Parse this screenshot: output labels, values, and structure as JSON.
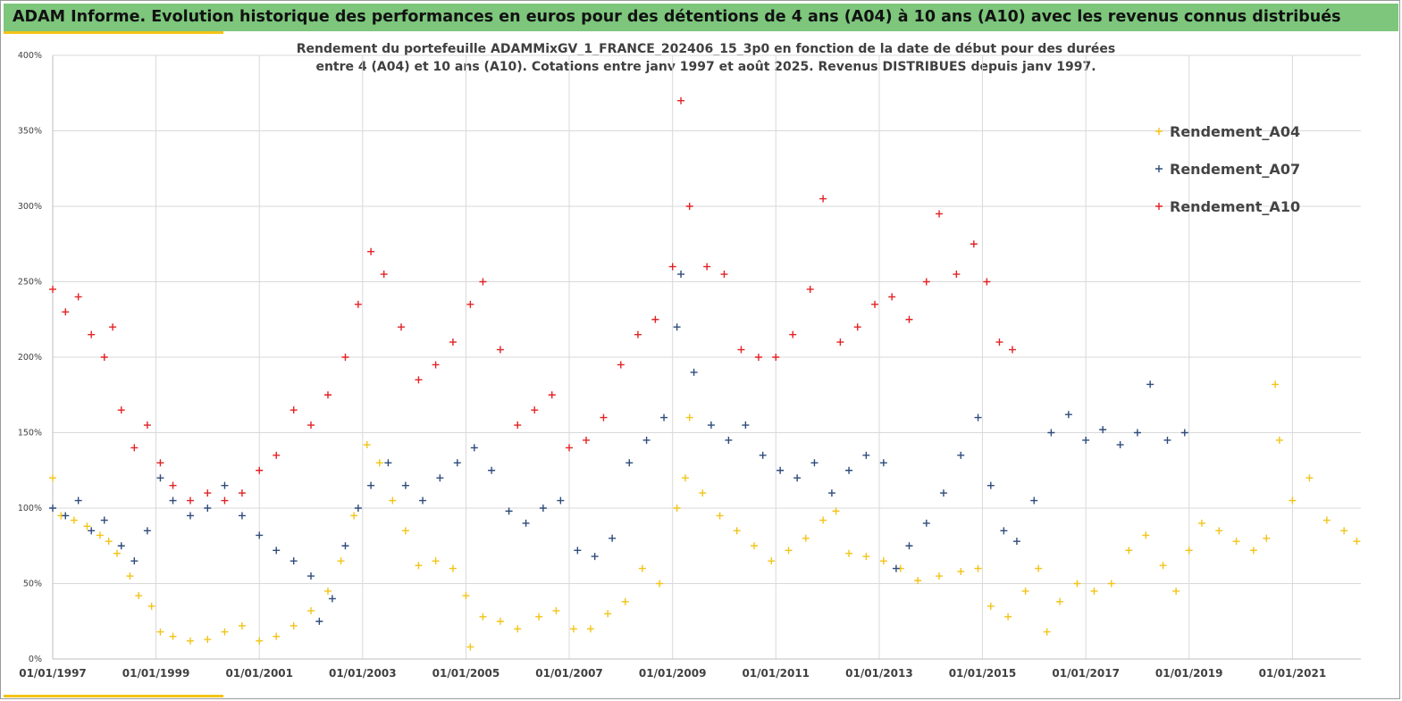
{
  "header": {
    "title": "ADAM Informe. Evolution historique des performances en euros pour des détentions de 4 ans (A04) à 10 ans (A10) avec les revenus connus distribués"
  },
  "colors": {
    "banner": "#7dc67c",
    "stripe": "#f3c318",
    "A04": "#f2c417",
    "A07": "#2f4b7c",
    "A10": "#e32224",
    "grid": "#d9d9d9"
  },
  "chart_data": {
    "type": "scatter",
    "title_line1": "Rendement du portefeuille ADAMMixGV_1_FRANCE_202406_15_3p0  en fonction de la date de début pour des durées",
    "title_line2": "entre 4 (A04) et 10 ans (A10). Cotations entre janv 1997 et août 2025. Revenus DISTRIBUES depuis janv 1997.",
    "xlabel": "",
    "ylabel": "",
    "x_range": [
      "1997-01-01",
      "2022-04-30"
    ],
    "ylim": [
      0,
      4
    ],
    "y_ticks": [
      "0%",
      "50%",
      "100%",
      "150%",
      "200%",
      "250%",
      "300%",
      "350%",
      "400%"
    ],
    "x_ticks": [
      "01/01/1997",
      "01/01/1999",
      "01/01/2001",
      "01/01/2003",
      "01/01/2005",
      "01/01/2007",
      "01/01/2009",
      "01/01/2011",
      "01/01/2013",
      "01/01/2015",
      "01/01/2017",
      "01/01/2019",
      "01/01/2021"
    ],
    "grid": true,
    "legend_position": "top-right",
    "marker": "+",
    "series": [
      {
        "name": "Rendement_A04",
        "color": "#f2c417",
        "points": [
          [
            "1997-01-01",
            1.2
          ],
          [
            "1997-03-01",
            0.95
          ],
          [
            "1997-06-01",
            0.92
          ],
          [
            "1997-09-01",
            0.88
          ],
          [
            "1997-12-01",
            0.82
          ],
          [
            "1998-02-01",
            0.78
          ],
          [
            "1998-04-01",
            0.7
          ],
          [
            "1998-07-01",
            0.55
          ],
          [
            "1998-09-01",
            0.42
          ],
          [
            "1998-12-01",
            0.35
          ],
          [
            "1999-02-01",
            0.18
          ],
          [
            "1999-05-01",
            0.15
          ],
          [
            "1999-09-01",
            0.12
          ],
          [
            "2000-01-01",
            0.13
          ],
          [
            "2000-05-01",
            0.18
          ],
          [
            "2000-09-01",
            0.22
          ],
          [
            "2001-01-01",
            0.12
          ],
          [
            "2001-05-01",
            0.15
          ],
          [
            "2001-09-01",
            0.22
          ],
          [
            "2002-01-01",
            0.32
          ],
          [
            "2002-05-01",
            0.45
          ],
          [
            "2002-08-01",
            0.65
          ],
          [
            "2002-11-01",
            0.95
          ],
          [
            "2003-02-01",
            1.42
          ],
          [
            "2003-05-01",
            1.3
          ],
          [
            "2003-08-01",
            1.05
          ],
          [
            "2003-11-01",
            0.85
          ],
          [
            "2004-02-01",
            0.62
          ],
          [
            "2004-06-01",
            0.65
          ],
          [
            "2004-10-01",
            0.6
          ],
          [
            "2005-01-01",
            0.42
          ],
          [
            "2005-02-01",
            0.08
          ],
          [
            "2005-05-01",
            0.28
          ],
          [
            "2005-09-01",
            0.25
          ],
          [
            "2006-01-01",
            0.2
          ],
          [
            "2006-06-01",
            0.28
          ],
          [
            "2006-10-01",
            0.32
          ],
          [
            "2007-02-01",
            0.2
          ],
          [
            "2007-06-01",
            0.2
          ],
          [
            "2007-10-01",
            0.3
          ],
          [
            "2008-02-01",
            0.38
          ],
          [
            "2008-06-01",
            0.6
          ],
          [
            "2008-10-01",
            0.5
          ],
          [
            "2009-02-01",
            1.0
          ],
          [
            "2009-04-01",
            1.2
          ],
          [
            "2009-05-01",
            1.6
          ],
          [
            "2009-08-01",
            1.1
          ],
          [
            "2009-12-01",
            0.95
          ],
          [
            "2010-04-01",
            0.85
          ],
          [
            "2010-08-01",
            0.75
          ],
          [
            "2010-12-01",
            0.65
          ],
          [
            "2011-04-01",
            0.72
          ],
          [
            "2011-08-01",
            0.8
          ],
          [
            "2011-12-01",
            0.92
          ],
          [
            "2012-03-01",
            0.98
          ],
          [
            "2012-06-01",
            0.7
          ],
          [
            "2012-10-01",
            0.68
          ],
          [
            "2013-02-01",
            0.65
          ],
          [
            "2013-06-01",
            0.6
          ],
          [
            "2013-10-01",
            0.52
          ],
          [
            "2014-03-01",
            0.55
          ],
          [
            "2014-08-01",
            0.58
          ],
          [
            "2014-12-01",
            0.6
          ],
          [
            "2015-03-01",
            0.35
          ],
          [
            "2015-07-01",
            0.28
          ],
          [
            "2015-11-01",
            0.45
          ],
          [
            "2016-02-01",
            0.6
          ],
          [
            "2016-04-01",
            0.18
          ],
          [
            "2016-07-01",
            0.38
          ],
          [
            "2016-11-01",
            0.5
          ],
          [
            "2017-03-01",
            0.45
          ],
          [
            "2017-07-01",
            0.5
          ],
          [
            "2017-11-01",
            0.72
          ],
          [
            "2018-03-01",
            0.82
          ],
          [
            "2018-07-01",
            0.62
          ],
          [
            "2018-10-01",
            0.45
          ],
          [
            "2019-01-01",
            0.72
          ],
          [
            "2019-04-01",
            0.9
          ],
          [
            "2019-08-01",
            0.85
          ],
          [
            "2019-12-01",
            0.78
          ],
          [
            "2020-04-01",
            0.72
          ],
          [
            "2020-07-01",
            0.8
          ],
          [
            "2020-09-01",
            1.82
          ],
          [
            "2020-10-01",
            1.45
          ],
          [
            "2021-01-01",
            1.05
          ],
          [
            "2021-05-01",
            1.2
          ],
          [
            "2021-09-01",
            0.92
          ],
          [
            "2022-01-01",
            0.85
          ],
          [
            "2022-04-01",
            0.78
          ]
        ]
      },
      {
        "name": "Rendement_A07",
        "color": "#2f4b7c",
        "points": [
          [
            "1997-01-01",
            1.0
          ],
          [
            "1997-04-01",
            0.95
          ],
          [
            "1997-07-01",
            1.05
          ],
          [
            "1997-10-01",
            0.85
          ],
          [
            "1998-01-01",
            0.92
          ],
          [
            "1998-05-01",
            0.75
          ],
          [
            "1998-08-01",
            0.65
          ],
          [
            "1998-11-01",
            0.85
          ],
          [
            "1999-02-01",
            1.2
          ],
          [
            "1999-05-01",
            1.05
          ],
          [
            "1999-09-01",
            0.95
          ],
          [
            "2000-01-01",
            1.0
          ],
          [
            "2000-05-01",
            1.15
          ],
          [
            "2000-09-01",
            0.95
          ],
          [
            "2001-01-01",
            0.82
          ],
          [
            "2001-05-01",
            0.72
          ],
          [
            "2001-09-01",
            0.65
          ],
          [
            "2002-01-01",
            0.55
          ],
          [
            "2002-03-01",
            0.25
          ],
          [
            "2002-06-01",
            0.4
          ],
          [
            "2002-09-01",
            0.75
          ],
          [
            "2002-12-01",
            1.0
          ],
          [
            "2003-03-01",
            1.15
          ],
          [
            "2003-07-01",
            1.3
          ],
          [
            "2003-11-01",
            1.15
          ],
          [
            "2004-03-01",
            1.05
          ],
          [
            "2004-07-01",
            1.2
          ],
          [
            "2004-11-01",
            1.3
          ],
          [
            "2005-03-01",
            1.4
          ],
          [
            "2005-07-01",
            1.25
          ],
          [
            "2005-11-01",
            0.98
          ],
          [
            "2006-03-01",
            0.9
          ],
          [
            "2006-07-01",
            1.0
          ],
          [
            "2006-11-01",
            1.05
          ],
          [
            "2007-03-01",
            0.72
          ],
          [
            "2007-07-01",
            0.68
          ],
          [
            "2007-11-01",
            0.8
          ],
          [
            "2008-03-01",
            1.3
          ],
          [
            "2008-07-01",
            1.45
          ],
          [
            "2008-11-01",
            1.6
          ],
          [
            "2009-02-01",
            2.2
          ],
          [
            "2009-03-01",
            2.55
          ],
          [
            "2009-06-01",
            1.9
          ],
          [
            "2009-10-01",
            1.55
          ],
          [
            "2010-02-01",
            1.45
          ],
          [
            "2010-06-01",
            1.55
          ],
          [
            "2010-10-01",
            1.35
          ],
          [
            "2011-02-01",
            1.25
          ],
          [
            "2011-06-01",
            1.2
          ],
          [
            "2011-10-01",
            1.3
          ],
          [
            "2012-02-01",
            1.1
          ],
          [
            "2012-06-01",
            1.25
          ],
          [
            "2012-10-01",
            1.35
          ],
          [
            "2013-02-01",
            1.3
          ],
          [
            "2013-05-01",
            0.6
          ],
          [
            "2013-08-01",
            0.75
          ],
          [
            "2013-12-01",
            0.9
          ],
          [
            "2014-04-01",
            1.1
          ],
          [
            "2014-08-01",
            1.35
          ],
          [
            "2014-12-01",
            1.6
          ],
          [
            "2015-03-01",
            1.15
          ],
          [
            "2015-06-01",
            0.85
          ],
          [
            "2015-09-01",
            0.78
          ],
          [
            "2016-01-01",
            1.05
          ],
          [
            "2016-05-01",
            1.5
          ],
          [
            "2016-09-01",
            1.62
          ],
          [
            "2017-01-01",
            1.45
          ],
          [
            "2017-05-01",
            1.52
          ],
          [
            "2017-09-01",
            1.42
          ],
          [
            "2018-01-01",
            1.5
          ],
          [
            "2018-04-01",
            1.82
          ],
          [
            "2018-08-01",
            1.45
          ],
          [
            "2018-12-01",
            1.5
          ]
        ]
      },
      {
        "name": "Rendement_A10",
        "color": "#e32224",
        "points": [
          [
            "1997-01-01",
            2.45
          ],
          [
            "1997-04-01",
            2.3
          ],
          [
            "1997-07-01",
            2.4
          ],
          [
            "1997-10-01",
            2.15
          ],
          [
            "1998-01-01",
            2.0
          ],
          [
            "1998-03-01",
            2.2
          ],
          [
            "1998-05-01",
            1.65
          ],
          [
            "1998-08-01",
            1.4
          ],
          [
            "1998-11-01",
            1.55
          ],
          [
            "1999-02-01",
            1.3
          ],
          [
            "1999-05-01",
            1.15
          ],
          [
            "1999-09-01",
            1.05
          ],
          [
            "2000-01-01",
            1.1
          ],
          [
            "2000-05-01",
            1.05
          ],
          [
            "2000-09-01",
            1.1
          ],
          [
            "2001-01-01",
            1.25
          ],
          [
            "2001-05-01",
            1.35
          ],
          [
            "2001-09-01",
            1.65
          ],
          [
            "2002-01-01",
            1.55
          ],
          [
            "2002-05-01",
            1.75
          ],
          [
            "2002-09-01",
            2.0
          ],
          [
            "2002-12-01",
            2.35
          ],
          [
            "2003-03-01",
            2.7
          ],
          [
            "2003-06-01",
            2.55
          ],
          [
            "2003-10-01",
            2.2
          ],
          [
            "2004-02-01",
            1.85
          ],
          [
            "2004-06-01",
            1.95
          ],
          [
            "2004-10-01",
            2.1
          ],
          [
            "2005-02-01",
            2.35
          ],
          [
            "2005-05-01",
            2.5
          ],
          [
            "2005-09-01",
            2.05
          ],
          [
            "2006-01-01",
            1.55
          ],
          [
            "2006-05-01",
            1.65
          ],
          [
            "2006-09-01",
            1.75
          ],
          [
            "2007-01-01",
            1.4
          ],
          [
            "2007-05-01",
            1.45
          ],
          [
            "2007-09-01",
            1.6
          ],
          [
            "2008-01-01",
            1.95
          ],
          [
            "2008-05-01",
            2.15
          ],
          [
            "2008-09-01",
            2.25
          ],
          [
            "2009-01-01",
            2.6
          ],
          [
            "2009-03-01",
            3.7
          ],
          [
            "2009-05-01",
            3.0
          ],
          [
            "2009-09-01",
            2.6
          ],
          [
            "2010-01-01",
            2.55
          ],
          [
            "2010-05-01",
            2.05
          ],
          [
            "2010-09-01",
            2.0
          ],
          [
            "2011-01-01",
            2.0
          ],
          [
            "2011-05-01",
            2.15
          ],
          [
            "2011-09-01",
            2.45
          ],
          [
            "2011-12-01",
            3.05
          ],
          [
            "2012-04-01",
            2.1
          ],
          [
            "2012-08-01",
            2.2
          ],
          [
            "2012-12-01",
            2.35
          ],
          [
            "2013-04-01",
            2.4
          ],
          [
            "2013-08-01",
            2.25
          ],
          [
            "2013-12-01",
            2.5
          ],
          [
            "2014-03-01",
            2.95
          ],
          [
            "2014-07-01",
            2.55
          ],
          [
            "2014-11-01",
            2.75
          ],
          [
            "2015-02-01",
            2.5
          ],
          [
            "2015-05-01",
            2.1
          ],
          [
            "2015-08-01",
            2.05
          ]
        ]
      }
    ]
  }
}
